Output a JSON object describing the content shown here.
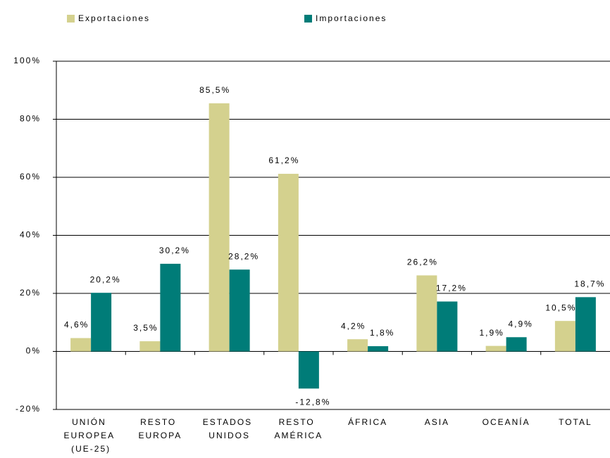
{
  "chart_data": {
    "type": "bar",
    "categories": [
      "UNIÓN EUROPEA (UE-25)",
      "RESTO EUROPA",
      "ESTADOS UNIDOS",
      "RESTO AMÉRICA",
      "ÁFRICA",
      "ASIA",
      "OCEANÍA",
      "TOTAL"
    ],
    "series": [
      {
        "name": "Exportaciones",
        "color": "#d4d18e",
        "values": [
          4.6,
          3.5,
          85.5,
          61.2,
          4.2,
          26.2,
          1.9,
          10.5
        ],
        "value_labels": [
          "4,6%",
          "3,5%",
          "85,5%",
          "61,2%",
          "4,2%",
          "26,2%",
          "1,9%",
          "10,5%"
        ]
      },
      {
        "name": "Importaciones",
        "color": "#007c78",
        "values": [
          20.2,
          30.2,
          28.2,
          -12.8,
          1.8,
          17.2,
          4.9,
          18.7
        ],
        "value_labels": [
          "20,2%",
          "30,2%",
          "28,2%",
          "-12,8%",
          "1,8%",
          "17,2%",
          "4,9%",
          "18,7%"
        ]
      }
    ],
    "ylim": [
      -20,
      100
    ],
    "yticks": [
      {
        "value": -20,
        "label": "-20%"
      },
      {
        "value": 0,
        "label": "0%"
      },
      {
        "value": 20,
        "label": "20%"
      },
      {
        "value": 40,
        "label": "40%"
      },
      {
        "value": 60,
        "label": "60%"
      },
      {
        "value": 80,
        "label": "80%"
      },
      {
        "value": 100,
        "label": "100%"
      }
    ],
    "grid": true,
    "legend": "top"
  }
}
